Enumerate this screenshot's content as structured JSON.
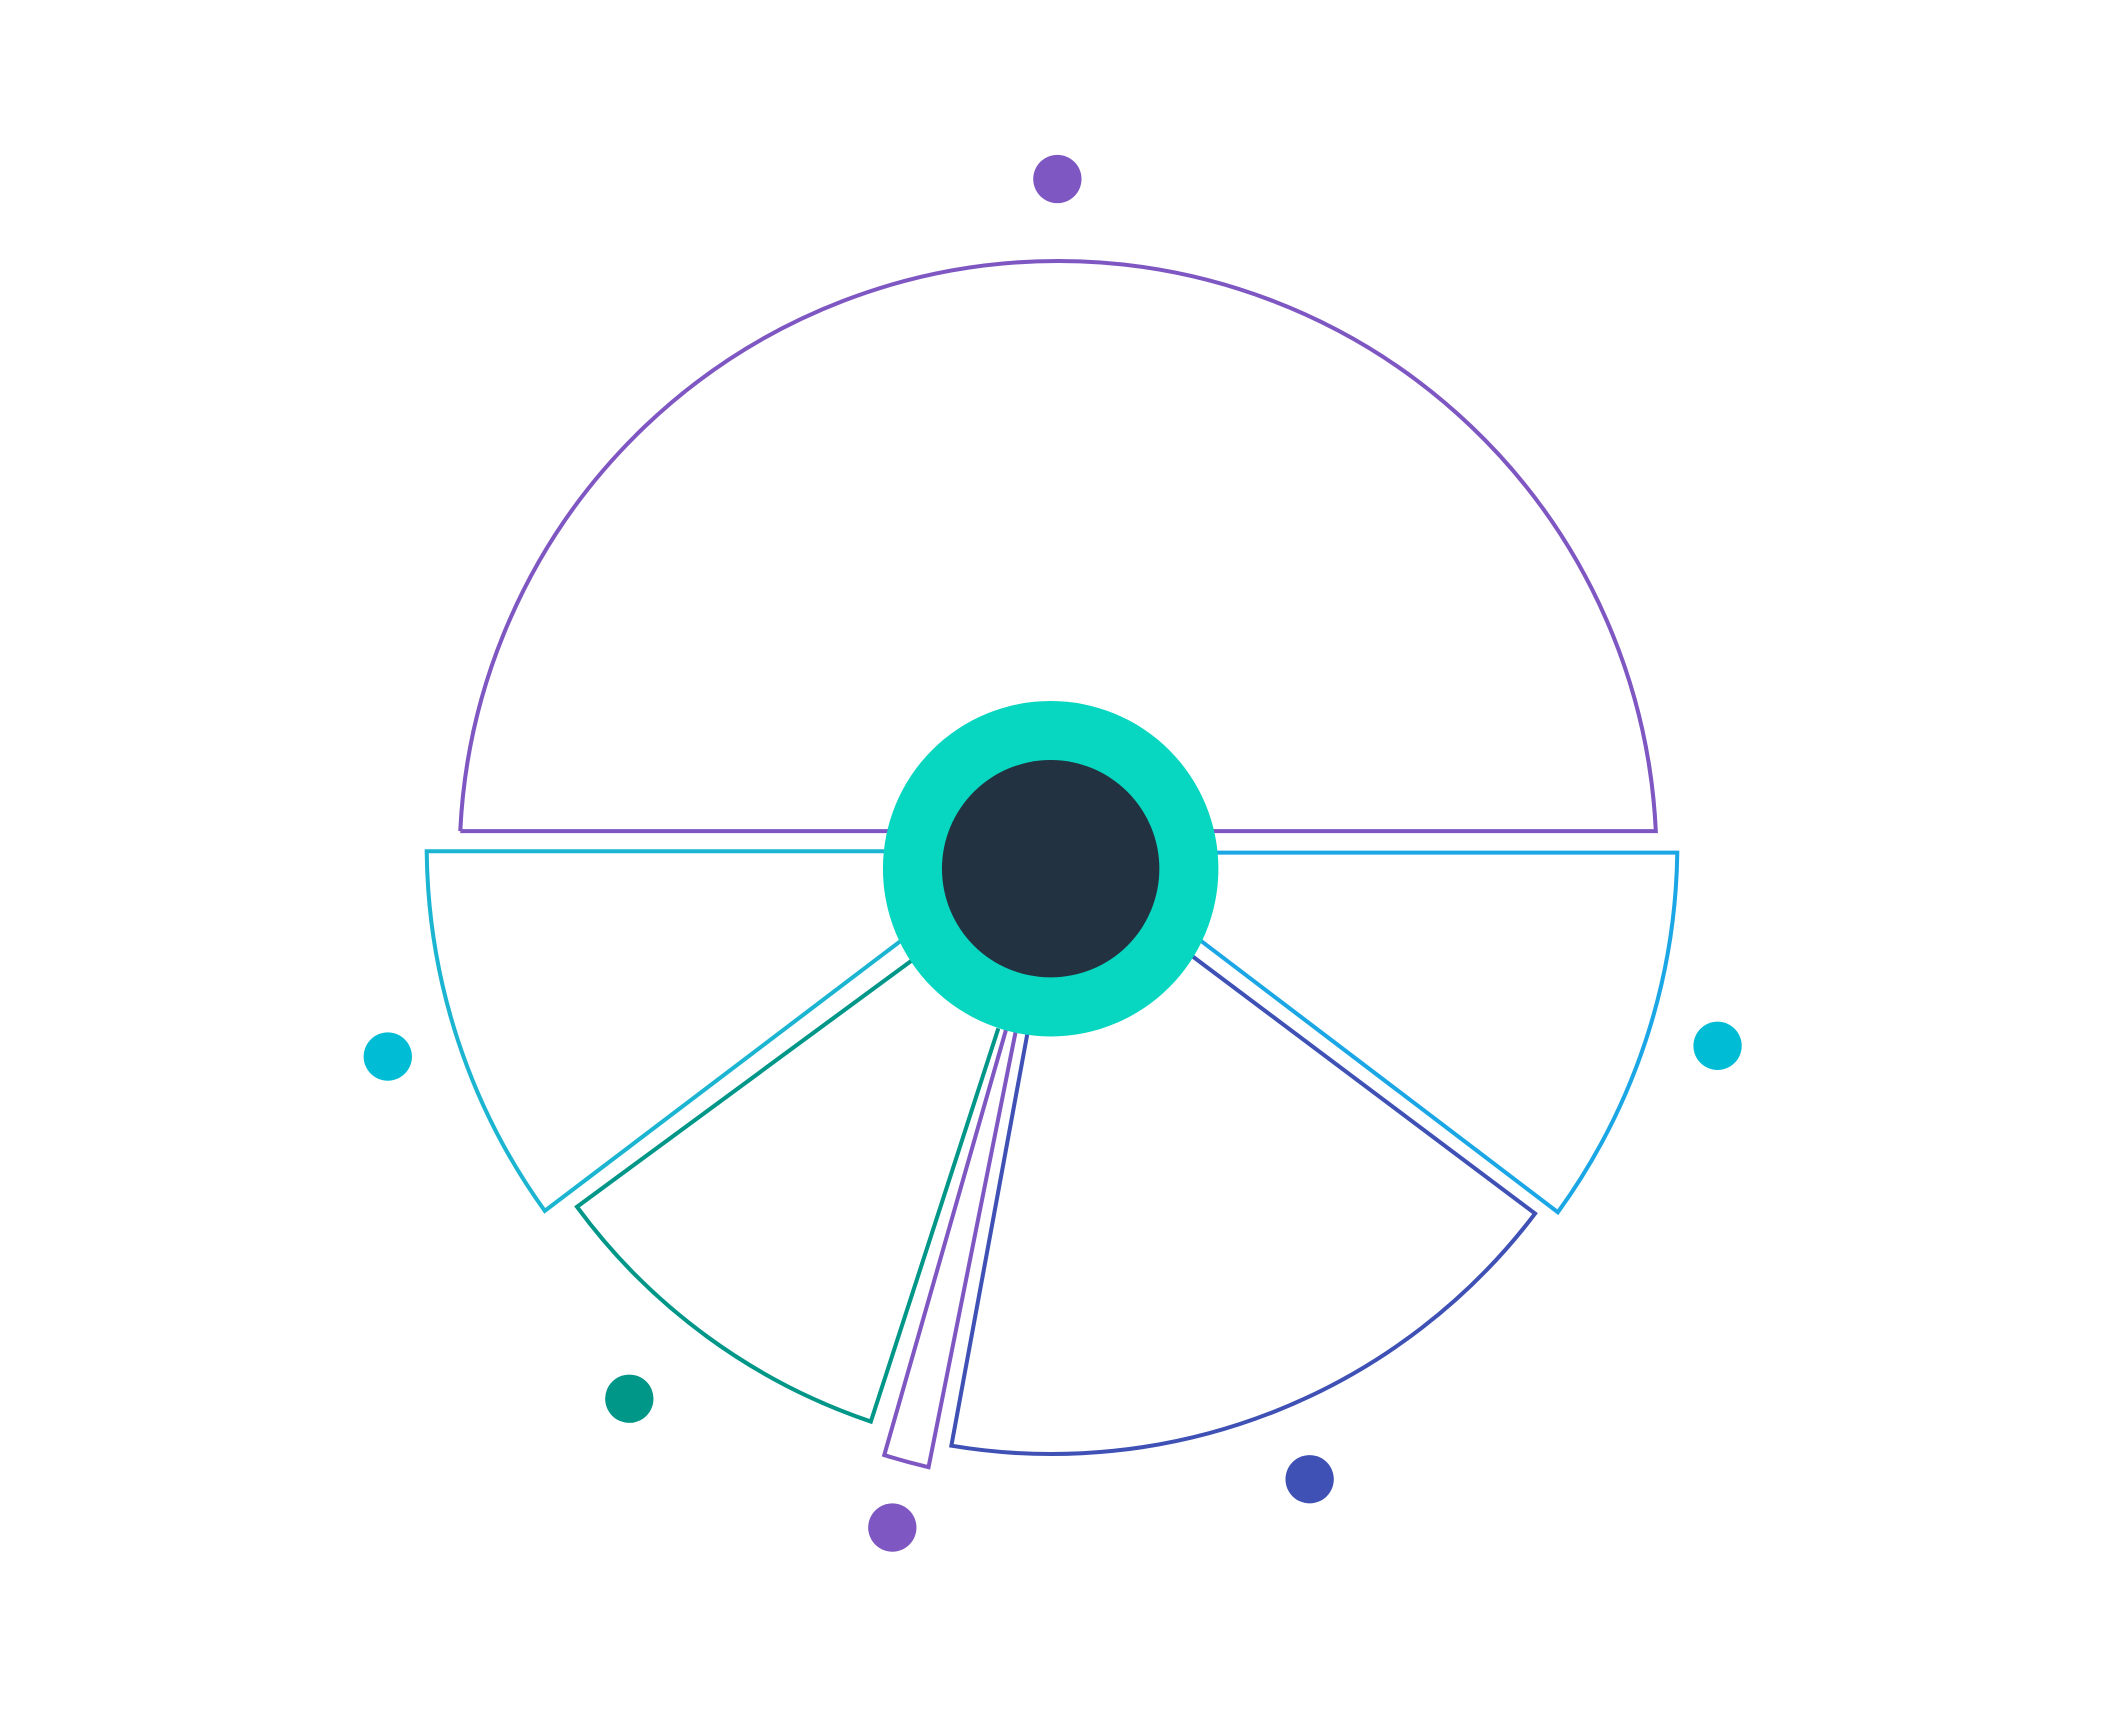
{
  "diagram": {
    "kind": "exploded-ring-segments",
    "hub": {
      "ring_color": "#07d6c0",
      "core_color": "#223240"
    },
    "segments": [
      {
        "id": "top",
        "stroke": "#7e57c2",
        "marker_color": "#7e57c2"
      },
      {
        "id": "right",
        "stroke": "#1ba7e5",
        "marker_color": "#00bcd4"
      },
      {
        "id": "bottom-right",
        "stroke": "#3f51b5",
        "marker_color": "#3f51b5"
      },
      {
        "id": "bottom-narrow",
        "stroke": "#7e57c2",
        "marker_color": "#7e57c2"
      },
      {
        "id": "bottom-left",
        "stroke": "#009688",
        "marker_color": "#009688"
      },
      {
        "id": "left",
        "stroke": "#1cb5d1",
        "marker_color": "#00bcd4"
      }
    ]
  }
}
